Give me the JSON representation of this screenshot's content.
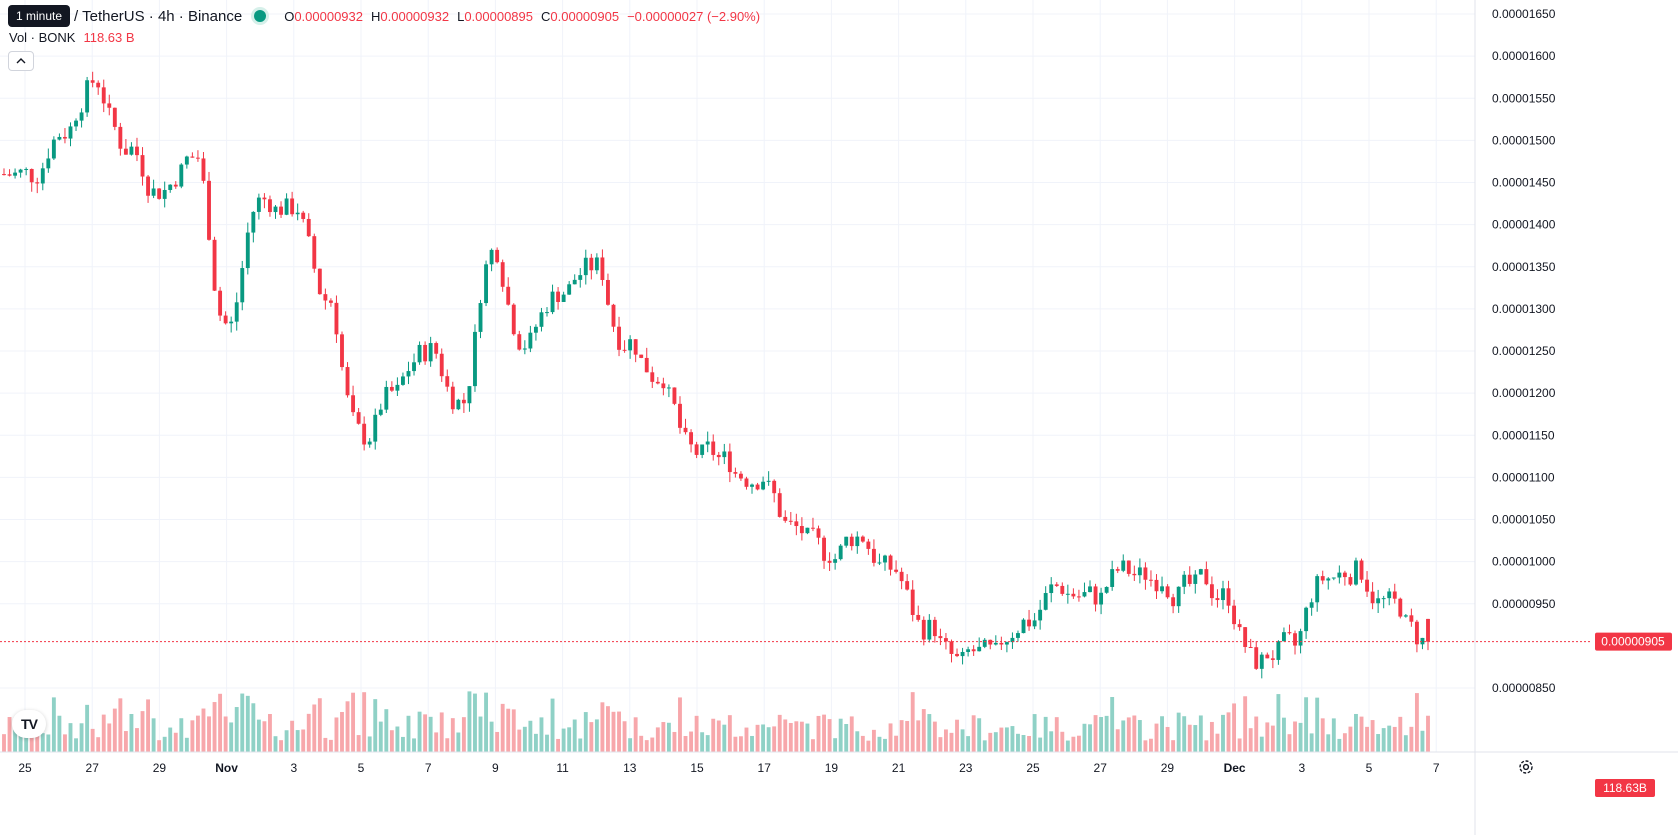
{
  "header": {
    "tooltip": "1 minute",
    "symbol_title": "/ TetherUS · 4h · Binance",
    "ohlc": {
      "open_label": "O",
      "open": "0.00000932",
      "high_label": "H",
      "high": "0.00000932",
      "low_label": "L",
      "low": "0.00000895",
      "close_label": "C",
      "close": "0.00000905",
      "change": "−0.00000027 (−2.90%)"
    },
    "volume_label": "Vol · BONK",
    "volume_value": "118.63 B"
  },
  "colors": {
    "up": "#089981",
    "down": "#f23645",
    "up_volume": "#8fd1c6",
    "down_volume": "#f7a7ab",
    "grid": "#f0f3fa",
    "axis_text": "#131722",
    "last_price": "#f23645"
  },
  "icons": {
    "tradingview_logo": "tradingview-logo-icon",
    "settings": "gear-icon",
    "collapse": "chevron-up-icon"
  },
  "chart_data": {
    "type": "candlestick",
    "interval": "4h",
    "x_axis_ticks": [
      "25",
      "27",
      "29",
      "Nov",
      "3",
      "5",
      "7",
      "9",
      "11",
      "13",
      "15",
      "17",
      "19",
      "21",
      "23",
      "25",
      "27",
      "29",
      "Dec",
      "3",
      "5",
      "7"
    ],
    "y_axis_ticks": [
      "0.00001650",
      "0.00001600",
      "0.00001550",
      "0.00001500",
      "0.00001450",
      "0.00001400",
      "0.00001350",
      "0.00001300",
      "0.00001250",
      "0.00001200",
      "0.00001150",
      "0.00001100",
      "0.00001050",
      "0.00001000",
      "0.00000950",
      "0.00000850"
    ],
    "ylim": [
      8e-06,
      1.66e-05
    ],
    "last_price": 9.05e-06,
    "last_price_label": "0.00000905",
    "last_volume_label": "118.63B",
    "price_trend": [
      {
        "date": "24 Oct",
        "close": 1.46e-05
      },
      {
        "date": "26 Oct",
        "close": 1.51e-05
      },
      {
        "date": "27 Oct",
        "close": 1.57e-05
      },
      {
        "date": "28 Oct",
        "close": 1.49e-05
      },
      {
        "date": "29 Oct",
        "close": 1.44e-05
      },
      {
        "date": "30 Oct",
        "close": 1.48e-05
      },
      {
        "date": "31 Oct",
        "close": 1.28e-05
      },
      {
        "date": "1 Nov",
        "close": 1.43e-05
      },
      {
        "date": "2 Nov",
        "close": 1.42e-05
      },
      {
        "date": "3 Nov",
        "close": 1.31e-05
      },
      {
        "date": "4 Nov",
        "close": 1.15e-05
      },
      {
        "date": "5 Nov",
        "close": 1.2e-05
      },
      {
        "date": "6 Nov",
        "close": 1.25e-05
      },
      {
        "date": "7 Nov",
        "close": 1.19e-05
      },
      {
        "date": "8 Nov",
        "close": 1.37e-05
      },
      {
        "date": "9 Nov",
        "close": 1.26e-05
      },
      {
        "date": "10 Nov",
        "close": 1.32e-05
      },
      {
        "date": "11 Nov",
        "close": 1.35e-05
      },
      {
        "date": "12 Nov",
        "close": 1.26e-05
      },
      {
        "date": "13 Nov",
        "close": 1.22e-05
      },
      {
        "date": "14 Nov",
        "close": 1.13e-05
      },
      {
        "date": "15 Nov",
        "close": 1.12e-05
      },
      {
        "date": "16 Nov",
        "close": 1.1e-05
      },
      {
        "date": "17 Nov",
        "close": 1.04e-05
      },
      {
        "date": "18 Nov",
        "close": 1.01e-05
      },
      {
        "date": "19 Nov",
        "close": 1.03e-05
      },
      {
        "date": "20 Nov",
        "close": 9.9e-06
      },
      {
        "date": "21 Nov",
        "close": 9.2e-06
      },
      {
        "date": "22 Nov",
        "close": 8.8e-06
      },
      {
        "date": "23 Nov",
        "close": 8.9e-06
      },
      {
        "date": "24 Nov",
        "close": 9.3e-06
      },
      {
        "date": "25 Nov",
        "close": 9.7e-06
      },
      {
        "date": "26 Nov",
        "close": 9.6e-06
      },
      {
        "date": "27 Nov",
        "close": 9.9e-06
      },
      {
        "date": "28 Nov",
        "close": 9.8e-06
      },
      {
        "date": "29 Nov",
        "close": 9.7e-06
      },
      {
        "date": "30 Nov",
        "close": 9.6e-06
      },
      {
        "date": "1 Dec",
        "close": 8.8e-06
      },
      {
        "date": "2 Dec",
        "close": 9e-06
      },
      {
        "date": "3 Dec",
        "close": 9.8e-06
      },
      {
        "date": "4 Dec",
        "close": 9.9e-06
      },
      {
        "date": "5 Dec",
        "close": 9.5e-06
      },
      {
        "date": "6 Dec",
        "close": 9.05e-06
      }
    ]
  }
}
